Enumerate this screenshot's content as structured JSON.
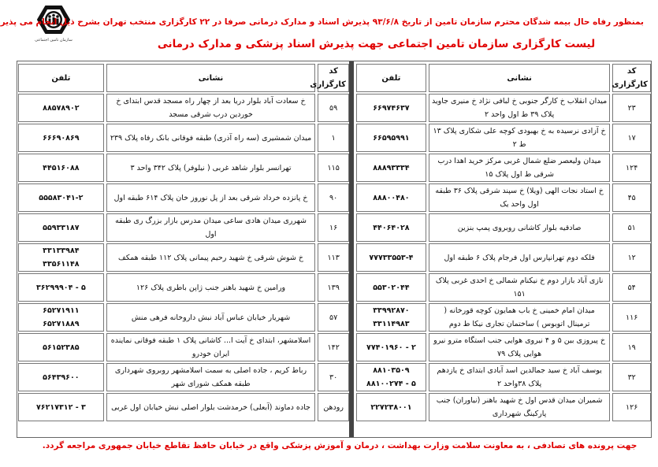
{
  "logo": {
    "text": "سازمان تامین اجتماعی"
  },
  "notice": "بمنظور رفاه حال بیمه شدگان محترم سازمان تامین از تاریخ ۹۳/۶/۸ پذیرش اسناد و مدارک درمانی صرفا در ۲۲ کارگزاری منتخب تهران بشرح ذیل انجام می پذیرد",
  "title": "لیست کارگزاری سازمان تامین اجتماعی جهت پذیرش اسناد پزشکی و مدارک درمانی",
  "headers": {
    "code": "کد کارگزاری",
    "address": "نشانی",
    "phone": "تلفن"
  },
  "tables": {
    "right": {
      "rows": [
        {
          "code": "۲۳",
          "address": "میدان انقلاب خ کارگر جنوبی خ لبافی نژاد خ منیری جاوید پلاک ۳۹ ط اول واحد ۲",
          "phones": [
            "۶۶۹۷۴۶۳۷"
          ]
        },
        {
          "code": "۱۷",
          "address": "خ آزادی نرسیده به خ بهبودی کوچه علی شکاری پلاک ۱۳ ط ۲",
          "phones": [
            "۶۶۵۹۵۹۹۱"
          ]
        },
        {
          "code": "۱۲۴",
          "address": "میدان ولیعصر ضلع شمال غربی مرکز خرید اهدا درب شرقی ط اول پلاک ۱۵",
          "phones": [
            "۸۸۸۹۳۳۳۴"
          ]
        },
        {
          "code": "۴۵",
          "address": "خ استاد نجات الهی (ویلا) خ سپند شرقی پلاک ۳۶ طبقه اول واحد یک",
          "phones": [
            "۸۸۸۰۰۴۸۰"
          ]
        },
        {
          "code": "۵۱",
          "address": "صادقیه بلوار کاشانی روبروی پمپ بنزین",
          "phones": [
            "۴۴۰۶۴۰۲۸"
          ]
        },
        {
          "code": "۱۲",
          "address": "فلکه دوم تهرانپارس اول فرجام پلاک ۶ طبقه اول",
          "phones": [
            "۷۷۷۳۳۵۵۳-۴"
          ]
        },
        {
          "code": "۵۴",
          "address": "نازی آباد بازار دوم خ نیکنام شمالی خ احدی غربی پلاک ۱۵۱",
          "phones": [
            "۵۵۳۰۲۰۴۴"
          ]
        },
        {
          "code": "۱۱۶",
          "address": "میدان امام خمینی خ باب همایون کوچه قورخانه ( ترمینال اتوبوس ) ساختمان تجاری نیکا ط دوم",
          "phones": [
            "۳۳۹۹۲۸۷۰",
            "۳۳۱۱۴۹۸۳"
          ]
        },
        {
          "code": "۱۹",
          "address": "خ پیروزی بین ۵ و ۴ نیروی هوایی جنب استگاه مترو نیرو هوایی پلاک ۷۹",
          "phones": [
            "۷۷۴۰۱۹۶۰ - ۲"
          ]
        },
        {
          "code": "۳۲",
          "address": "یوسف آباد خ سید جمالدین اسد آبادی ابتدای خ یازدهم پلاک ۳۸واحد ۲",
          "phones": [
            "۸۸۱۰۳۵۰۹",
            "۸۸۱۰۰۲۷۴ - ۵"
          ]
        },
        {
          "code": "۱۲۶",
          "address": "شمیران میدان قدس اول خ شهید باهنر (نیاوران) جنب پارکینگ شهرداری",
          "phones": [
            "۲۲۷۲۳۸۰۰۱"
          ]
        }
      ]
    },
    "left": {
      "rows": [
        {
          "code": "۵۹",
          "address": "خ سعادت آباد بلوار دریا بعد از چهار راه مسجد قدس ابتدای خ خوردین درب شرقی مسجد",
          "phones": [
            "۸۸۵۷۸۹۰۲"
          ]
        },
        {
          "code": "۱",
          "address": "میدان شمشیری (سه راه آذری) طبقه فوقانی بانک رفاه پلاک ۲۳۹",
          "phones": [
            "۶۶۶۹۰۸۶۹"
          ]
        },
        {
          "code": "۱۱۵",
          "address": "تهرانسر بلوار شاهد غربی ( نیلوفر) پلاک ۳۴۲ واحد ۳",
          "phones": [
            "۴۴۵۱۶۰۸۸"
          ]
        },
        {
          "code": "۹۰",
          "address": "خ پانزده خرداد شرقی بعد از پل نوروز خان پلاک ۶۱۴ طبقه اول",
          "phones": [
            "۵۵۵۸۳۰۴۱-۲"
          ]
        },
        {
          "code": "۱۶",
          "address": "شهرری میدان هادی ساعی میدان مدرس بازار بزرگ ری طبقه اول",
          "phones": [
            "۵۵۹۳۳۱۸۷"
          ]
        },
        {
          "code": "۱۱۳",
          "address": "خ شوش شرقی خ شهید رحیم پیمانی پلاک ۱۱۲ طبقه همکف",
          "phones": [
            "۳۳۱۳۳۹۸۴",
            "۳۳۵۶۱۱۴۸"
          ]
        },
        {
          "code": "۱۳۹",
          "address": "ورامین خ شهید باهنر جنب ژاپن باطری پلاک ۱۲۶",
          "phones": [
            "۳۶۲۹۹۹۰۴ - ۵"
          ]
        },
        {
          "code": "۵۷",
          "address": "شهریار خیابان عباس آباد نبش داروخانه فرهی منش",
          "phones": [
            "۶۵۲۷۱۹۱۱",
            "۶۵۲۷۱۸۸۹"
          ]
        },
        {
          "code": "۱۴۲",
          "address": "اسلامشهر، ابتدای خ آیت ا... کاشانی پلاک ۱ طبقه فوقانی نماینده ایران خودرو",
          "phones": [
            "۵۶۱۵۲۳۸۵"
          ]
        },
        {
          "code": "۳۰",
          "address": "رباط کریم ، جاده اصلی به سمت اسلامشهر روبروی شهرداری طبقه همکف شورای شهر",
          "phones": [
            "۵۶۴۳۹۶۰۰"
          ]
        },
        {
          "code": "رودهن",
          "address": "جاده دماوند (آبعلی) خرمدشت بلوار اصلی نبش خیابان اول غربی",
          "phones": [
            "۷۶۲۱۷۳۱۲ - ۳"
          ]
        }
      ]
    }
  },
  "footer": "جهت پرونده های تصادفی ، به معاونت سلامت وزارت بهداشت ، درمان و آموزش پزشکی واقع در خیابان حافظ تقاطع خیابان جمهوری مراجعه گردد.",
  "colors": {
    "accent_red": "#e00000",
    "divider": "#444444",
    "border": "#777777"
  }
}
